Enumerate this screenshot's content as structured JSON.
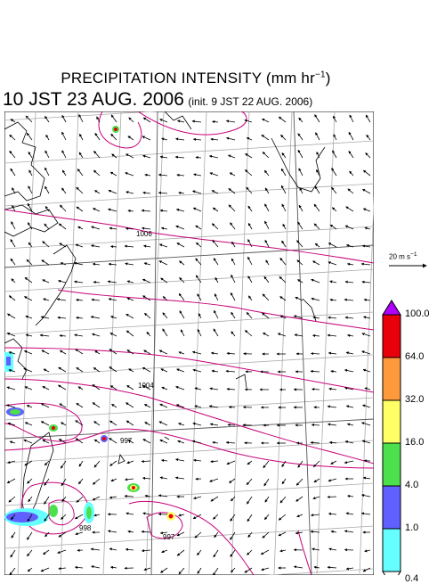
{
  "title": {
    "main": "PRECIPITATION INTENSITY (mm hr",
    "exp": "−1",
    "close": ")"
  },
  "subtitle": {
    "valid": "10 JST 23 AUG. 2006",
    "init": "(init. 9 JST 22 AUG. 2006)"
  },
  "wind_scale": {
    "label": "20 m s",
    "exp": "−1"
  },
  "colorbar": {
    "labels": [
      "100.0",
      "64.0",
      "32.0",
      "16.0",
      "4.0",
      "1.0",
      "0.4"
    ],
    "colors": [
      "#e8000b",
      "#ff9a3c",
      "#ffff66",
      "#4ce04c",
      "#6060ff",
      "#66ffff"
    ],
    "over_color": "#b000ff"
  },
  "contour_labels": [
    "1006",
    "1004",
    "997",
    "998",
    "997"
  ],
  "colors": {
    "contour": "#c8007a",
    "grid": "#aaaaaa",
    "coast": "#000000"
  }
}
